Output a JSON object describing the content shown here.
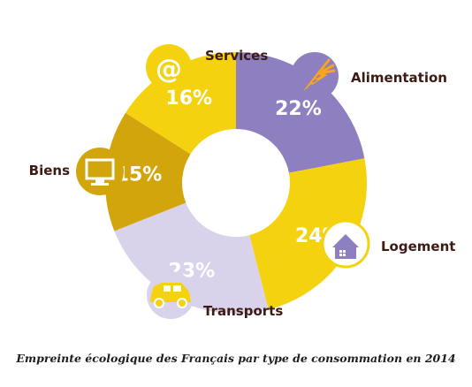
{
  "chart_data": {
    "type": "pie",
    "title": "Empreinte écologique des Français par type de consommation en 2014",
    "categories": [
      "Alimentation",
      "Logement",
      "Transports",
      "Biens",
      "Services"
    ],
    "values": [
      22,
      24,
      23,
      15,
      16
    ],
    "value_labels": [
      "22%",
      "24%",
      "23%",
      "15%",
      "16%"
    ],
    "colors": [
      "#8e7fc1",
      "#f5d20f",
      "#d8d3ea",
      "#d3a50c",
      "#f5d20f"
    ],
    "icons": [
      "carrot-icon",
      "house-icon",
      "car-icon",
      "monitor-icon",
      "at-sign-icon"
    ],
    "donut": true,
    "legend": "none"
  }
}
